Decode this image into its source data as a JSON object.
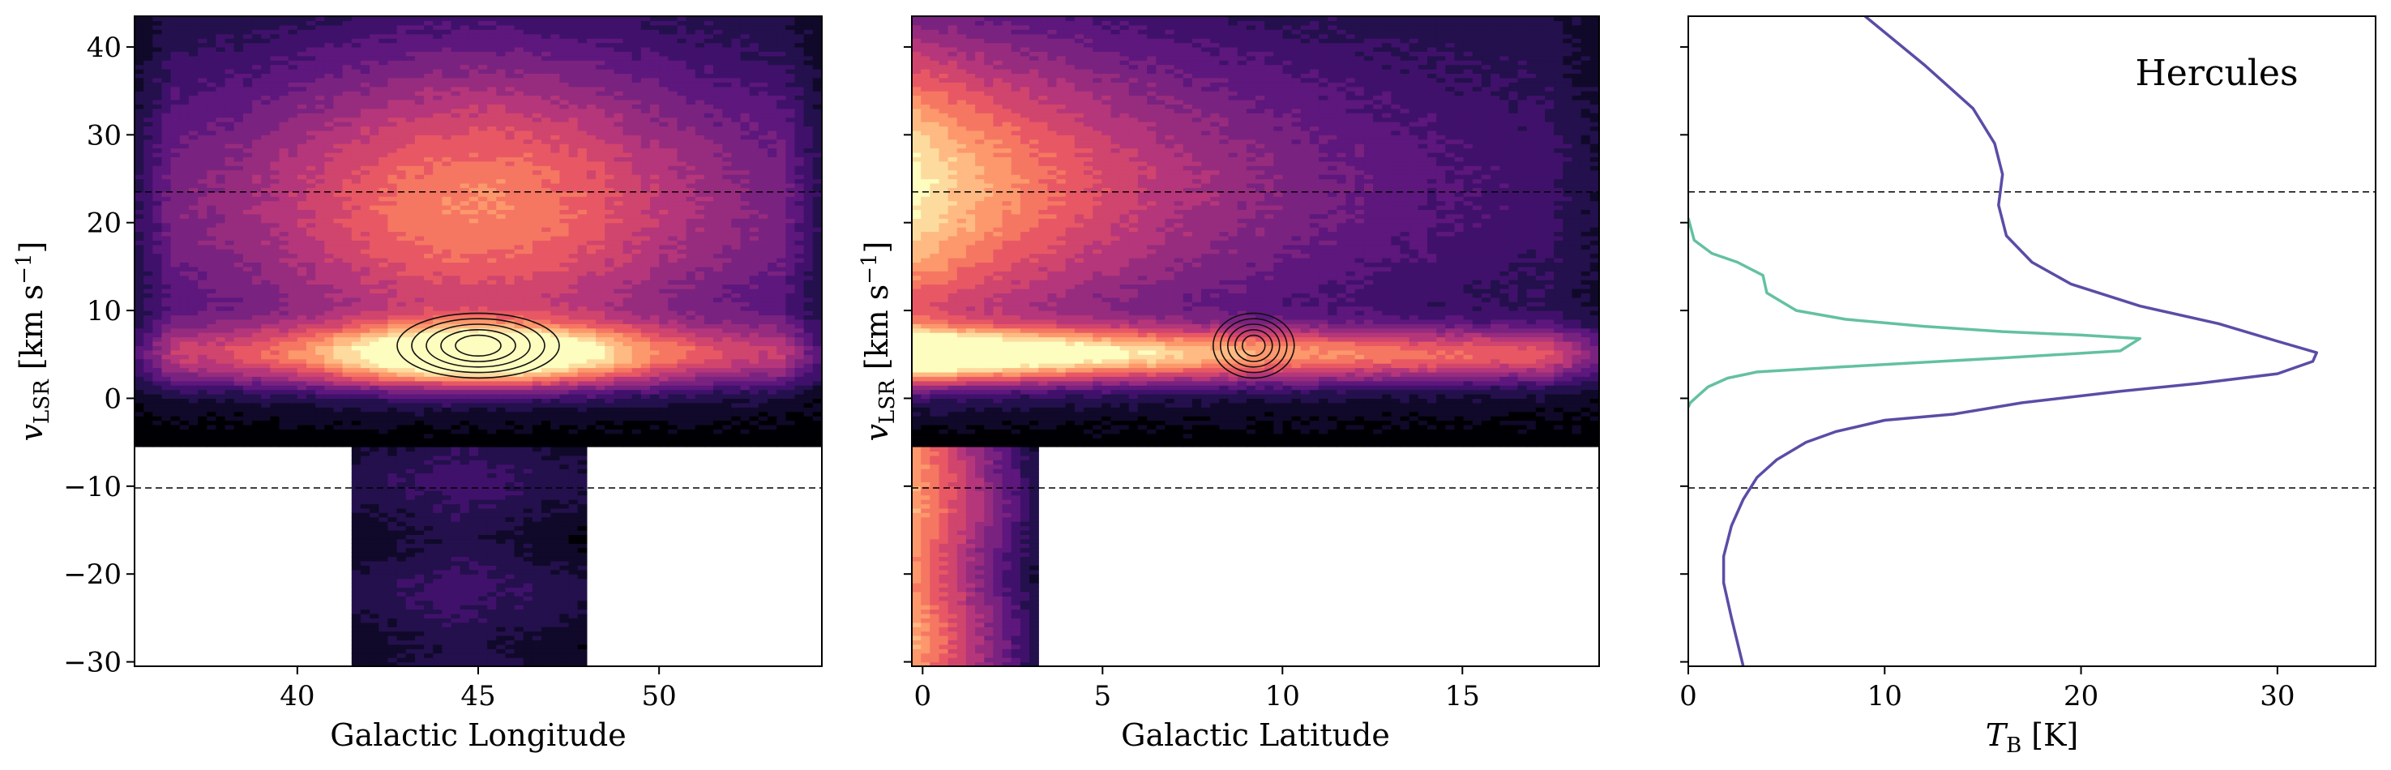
{
  "chart_data": [
    {
      "type": "heatmap",
      "xlabel": "Galactic Longitude",
      "ylabel_base": "v",
      "ylabel_sub": "LSR",
      "ylabel_unit_pre": " [km s",
      "ylabel_unit_sup": "−1",
      "ylabel_unit_post": "]",
      "xlim": [
        35.5,
        54.5
      ],
      "ylim": [
        -30.5,
        43.5
      ],
      "xticks": [
        40,
        45,
        50
      ],
      "yticks": [
        -30,
        -20,
        -10,
        0,
        10,
        20,
        30,
        40
      ],
      "hlines": [
        23.5,
        -10.2
      ],
      "colormap": [
        "#000004",
        "#1c1044",
        "#4f127b",
        "#812581",
        "#b5367a",
        "#e55064",
        "#fb8761",
        "#fec287",
        "#fcfdbf"
      ],
      "structure": {
        "upper_x_range": [
          35.5,
          54.5
        ],
        "upper_v_range": [
          -5,
          43.5
        ],
        "stem_x_range": [
          41.5,
          48
        ],
        "stem_v_range": [
          -30.5,
          -5
        ],
        "peak_x": 45,
        "peak_v": 5
      },
      "contours": {
        "x": 45,
        "v": 6,
        "levels": 5
      }
    },
    {
      "type": "heatmap",
      "xlabel": "Galactic Latitude",
      "ylabel_base": "v",
      "ylabel_sub": "LSR",
      "ylabel_unit_pre": " [km s",
      "ylabel_unit_sup": "−1",
      "ylabel_unit_post": "]",
      "xlim": [
        -0.3,
        18.8
      ],
      "ylim": [
        -30.5,
        43.5
      ],
      "xticks": [
        0,
        5,
        10,
        15
      ],
      "yticks": [
        -30,
        -20,
        -10,
        0,
        10,
        20,
        30,
        40
      ],
      "hlines": [
        23.5,
        -10.2
      ],
      "structure": {
        "upper_b_range": [
          -0.3,
          18.8
        ],
        "upper_v_range": [
          -5,
          43.5
        ],
        "stem_b_range": [
          -0.3,
          3.3
        ],
        "stem_v_range": [
          -30.5,
          -5
        ],
        "peak_b": 1,
        "peak_v": 5
      },
      "contours": {
        "x": 9.2,
        "v": 6,
        "levels": 5
      }
    },
    {
      "type": "line",
      "xlabel_base": "T",
      "xlabel_sub": "B",
      "xlabel_unit": " [K]",
      "xlim": [
        0,
        35
      ],
      "ylim": [
        -30.5,
        43.5
      ],
      "xticks": [
        0,
        10,
        20,
        30
      ],
      "yticks": [
        -30,
        -20,
        -10,
        0,
        10,
        20,
        30,
        40
      ],
      "hlines": [
        23.5,
        -10.2
      ],
      "annotation": "Hercules",
      "series": [
        {
          "color": "#5b4ca6",
          "points": [
            [
              9,
              43.5
            ],
            [
              12,
              38
            ],
            [
              14.5,
              33
            ],
            [
              15.6,
              29
            ],
            [
              16,
              25.5
            ],
            [
              15.8,
              22
            ],
            [
              16.2,
              18.5
            ],
            [
              17.5,
              15.5
            ],
            [
              19.5,
              13
            ],
            [
              23,
              10.5
            ],
            [
              27,
              8.5
            ],
            [
              30,
              6.5
            ],
            [
              32,
              5.2
            ],
            [
              31.8,
              4.2
            ],
            [
              30,
              2.8
            ],
            [
              26,
              1.7
            ],
            [
              22,
              0.8
            ],
            [
              17,
              -0.5
            ],
            [
              13.5,
              -1.8
            ],
            [
              10,
              -2.5
            ],
            [
              7.5,
              -3.8
            ],
            [
              6,
              -5
            ],
            [
              4.5,
              -7
            ],
            [
              3.5,
              -9
            ],
            [
              2.8,
              -11.5
            ],
            [
              2.2,
              -14.5
            ],
            [
              1.8,
              -18
            ],
            [
              1.8,
              -21
            ],
            [
              2.2,
              -25
            ],
            [
              2.8,
              -30.5
            ]
          ]
        },
        {
          "color": "#63c1a0",
          "points": [
            [
              0,
              20.5
            ],
            [
              0.3,
              18
            ],
            [
              1.2,
              16.5
            ],
            [
              2.5,
              15.5
            ],
            [
              3.8,
              14
            ],
            [
              4,
              12
            ],
            [
              5.5,
              10
            ],
            [
              8,
              9
            ],
            [
              12,
              8.2
            ],
            [
              16,
              7.6
            ],
            [
              20,
              7.2
            ],
            [
              23,
              6.8
            ],
            [
              22,
              5.4
            ],
            [
              16,
              4.6
            ],
            [
              8,
              3.6
            ],
            [
              3.5,
              3
            ],
            [
              2,
              2.3
            ],
            [
              1,
              1.3
            ],
            [
              0.5,
              0.3
            ],
            [
              0.1,
              -0.5
            ],
            [
              0,
              -1
            ]
          ]
        }
      ]
    }
  ]
}
